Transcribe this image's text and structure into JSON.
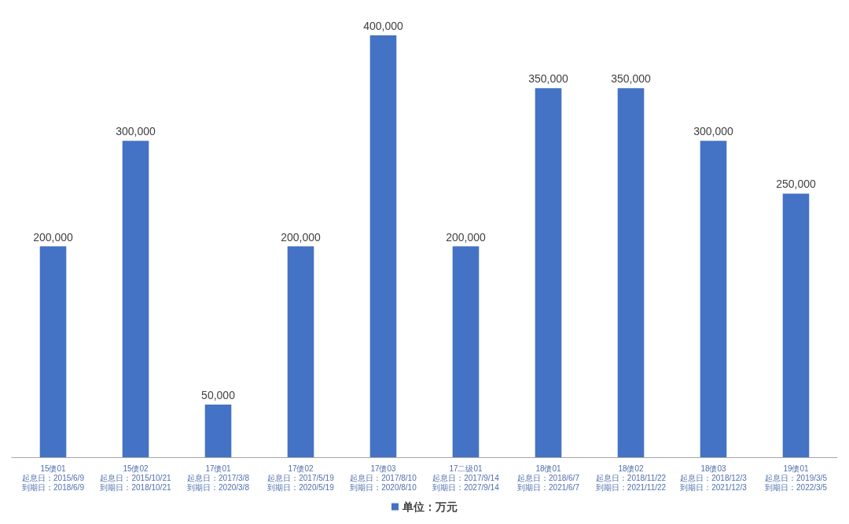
{
  "chart_data": {
    "type": "bar",
    "categories": [
      "15债01\n起息日：2015/6/9\n到期日：2018/6/9",
      "15债02\n起息日：2015/10/21\n到期日：2018/10/21",
      "17债01\n起息日：2017/3/8\n到期日：2020/3/8",
      "17债02\n起息日：2017/5/19\n到期日：2020/5/19",
      "17债03\n起息日：2017/8/10\n到期日：2020/8/10",
      "17二级01\n起息日：2017/9/14\n到期日：2027/9/14",
      "18债01\n起息日：2018/6/7\n到期日：2021/6/7",
      "18债02\n起息日：2018/11/22\n到期日：2021/11/22",
      "18债03\n起息日：2018/12/3\n到期日：2021/12/3",
      "19债01\n起息日：2019/3/5\n到期日：2022/3/5"
    ],
    "series": [
      {
        "name": "单位：万元",
        "color": "#4472c4",
        "values": [
          200000,
          300000,
          50000,
          200000,
          400000,
          200000,
          350000,
          350000,
          300000,
          250000
        ],
        "value_labels": [
          "200,000",
          "300,000",
          "50,000",
          "200,000",
          "400,000",
          "200,000",
          "350,000",
          "350,000",
          "300,000",
          "250,000"
        ]
      }
    ],
    "legend": "bottom",
    "tick_labels": "x"
  }
}
